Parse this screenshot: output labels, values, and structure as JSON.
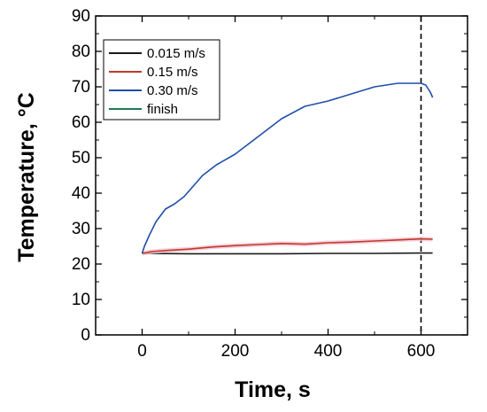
{
  "chart_data": {
    "type": "line",
    "xlabel": "Time, s",
    "ylabel": "Temperature, °C",
    "xlim": [
      -100,
      700
    ],
    "ylim": [
      0,
      90
    ],
    "x_ticks": [
      "0",
      "200",
      "400",
      "600"
    ],
    "y_ticks": [
      "0",
      "10",
      "20",
      "30",
      "40",
      "50",
      "60",
      "70",
      "80",
      "90"
    ],
    "grid": false,
    "legend_position": "top-left",
    "annotations": [
      {
        "type": "vertical-dashed-line",
        "x": 600
      }
    ],
    "series": [
      {
        "name": "0.015 m/s",
        "color": "#1a1a1a",
        "x": [
          0,
          100,
          200,
          300,
          400,
          500,
          600,
          625
        ],
        "y": [
          23.0,
          22.9,
          22.9,
          22.9,
          23.0,
          23.0,
          23.1,
          23.1
        ]
      },
      {
        "name": "0.15 m/s",
        "color": "#c0392b",
        "x": [
          0,
          20,
          50,
          100,
          150,
          200,
          250,
          300,
          350,
          400,
          450,
          500,
          550,
          600,
          625
        ],
        "y": [
          23.0,
          23.5,
          23.8,
          24.2,
          24.8,
          25.2,
          25.5,
          25.8,
          25.6,
          26.0,
          26.2,
          26.5,
          26.8,
          27.1,
          27.0
        ]
      },
      {
        "name": "0.30 m/s",
        "color": "#1f4fa8",
        "x": [
          0,
          5,
          15,
          30,
          50,
          70,
          90,
          110,
          130,
          160,
          200,
          250,
          300,
          350,
          400,
          450,
          500,
          550,
          600,
          610,
          620,
          625
        ],
        "y": [
          23,
          25,
          28,
          32,
          35.5,
          37,
          39,
          42,
          45,
          48,
          51,
          56,
          61,
          64.5,
          66,
          68,
          70,
          71,
          71,
          70.5,
          68.5,
          67
        ]
      },
      {
        "name": "finish",
        "color": "#1e7a55",
        "x": [],
        "y": []
      }
    ]
  }
}
